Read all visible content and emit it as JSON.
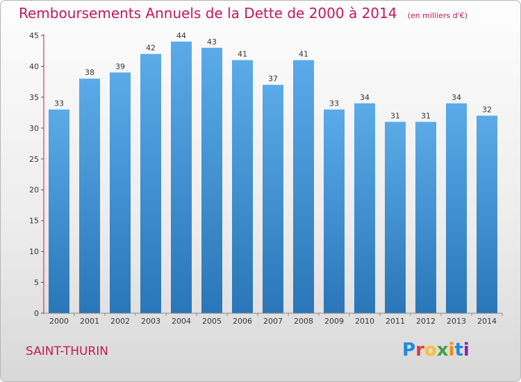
{
  "title": "Remboursements Annuels de la Dette de 2000 à 2014",
  "unit_note": "(en milliers d'€)",
  "commune": "SAINT-THURIN",
  "logo": {
    "text": "Proxiti",
    "letter_colors": [
      "#1e88e5",
      "#e53935",
      "#fbc02d",
      "#43a047",
      "#fb8c00",
      "#1e88e5",
      "#8e24aa"
    ]
  },
  "colors": {
    "title": "#c2185b",
    "bar_top": "#5aabe8",
    "bar_bottom": "#2a76b8",
    "axis": "#c2185b"
  },
  "chart_data": {
    "type": "bar",
    "categories": [
      "2000",
      "2001",
      "2002",
      "2003",
      "2004",
      "2005",
      "2006",
      "2007",
      "2008",
      "2009",
      "2010",
      "2011",
      "2012",
      "2013",
      "2014"
    ],
    "values": [
      33,
      38,
      39,
      42,
      44,
      43,
      41,
      37,
      41,
      33,
      34,
      31,
      31,
      34,
      32
    ],
    "ylim": [
      0,
      45
    ],
    "yticks": [
      0,
      5,
      10,
      15,
      20,
      25,
      30,
      35,
      40,
      45
    ],
    "grid": false,
    "data_labels": true
  }
}
